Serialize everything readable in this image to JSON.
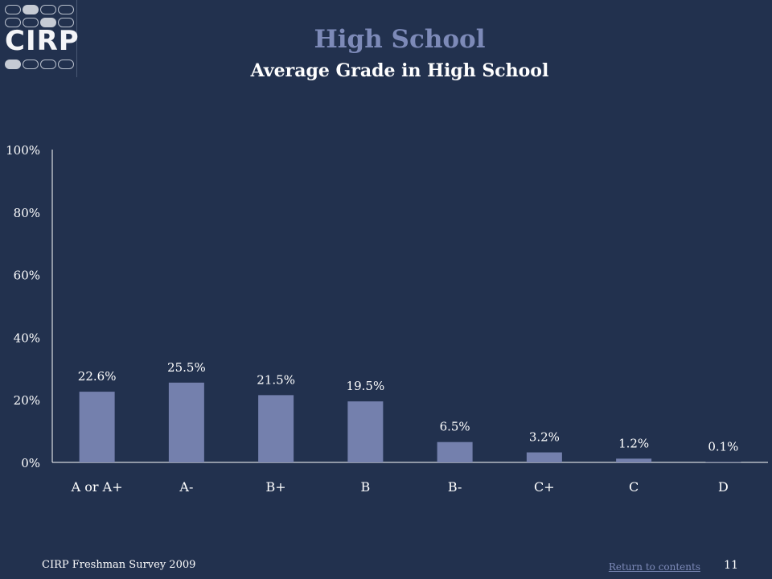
{
  "slide": {
    "title": "High School",
    "subtitle": "Average Grade in High School",
    "footer_source": "CIRP Freshman Survey 2009",
    "return_link": "Return to contents",
    "page_number": "11"
  },
  "logo": {
    "text": "CIRP"
  },
  "colors": {
    "background": "#22314e",
    "bar": "#7480ad",
    "title": "#7d8ab8",
    "text": "#ffffff"
  },
  "chart_data": {
    "type": "bar",
    "title": "Average Grade in High School",
    "categories": [
      "A or A+",
      "A-",
      "B+",
      "B",
      "B-",
      "C+",
      "C",
      "D"
    ],
    "values": [
      22.6,
      25.5,
      21.5,
      19.5,
      6.5,
      3.2,
      1.2,
      0.1
    ],
    "data_labels": [
      "22.6%",
      "25.5%",
      "21.5%",
      "19.5%",
      "6.5%",
      "3.2%",
      "1.2%",
      "0.1%"
    ],
    "ylim": [
      0,
      100
    ],
    "yticks": [
      0,
      20,
      40,
      60,
      80,
      100
    ],
    "ytick_labels": [
      "0%",
      "20%",
      "40%",
      "60%",
      "80%",
      "100%"
    ],
    "xlabel": "",
    "ylabel": "",
    "grid": false,
    "legend": "none"
  }
}
